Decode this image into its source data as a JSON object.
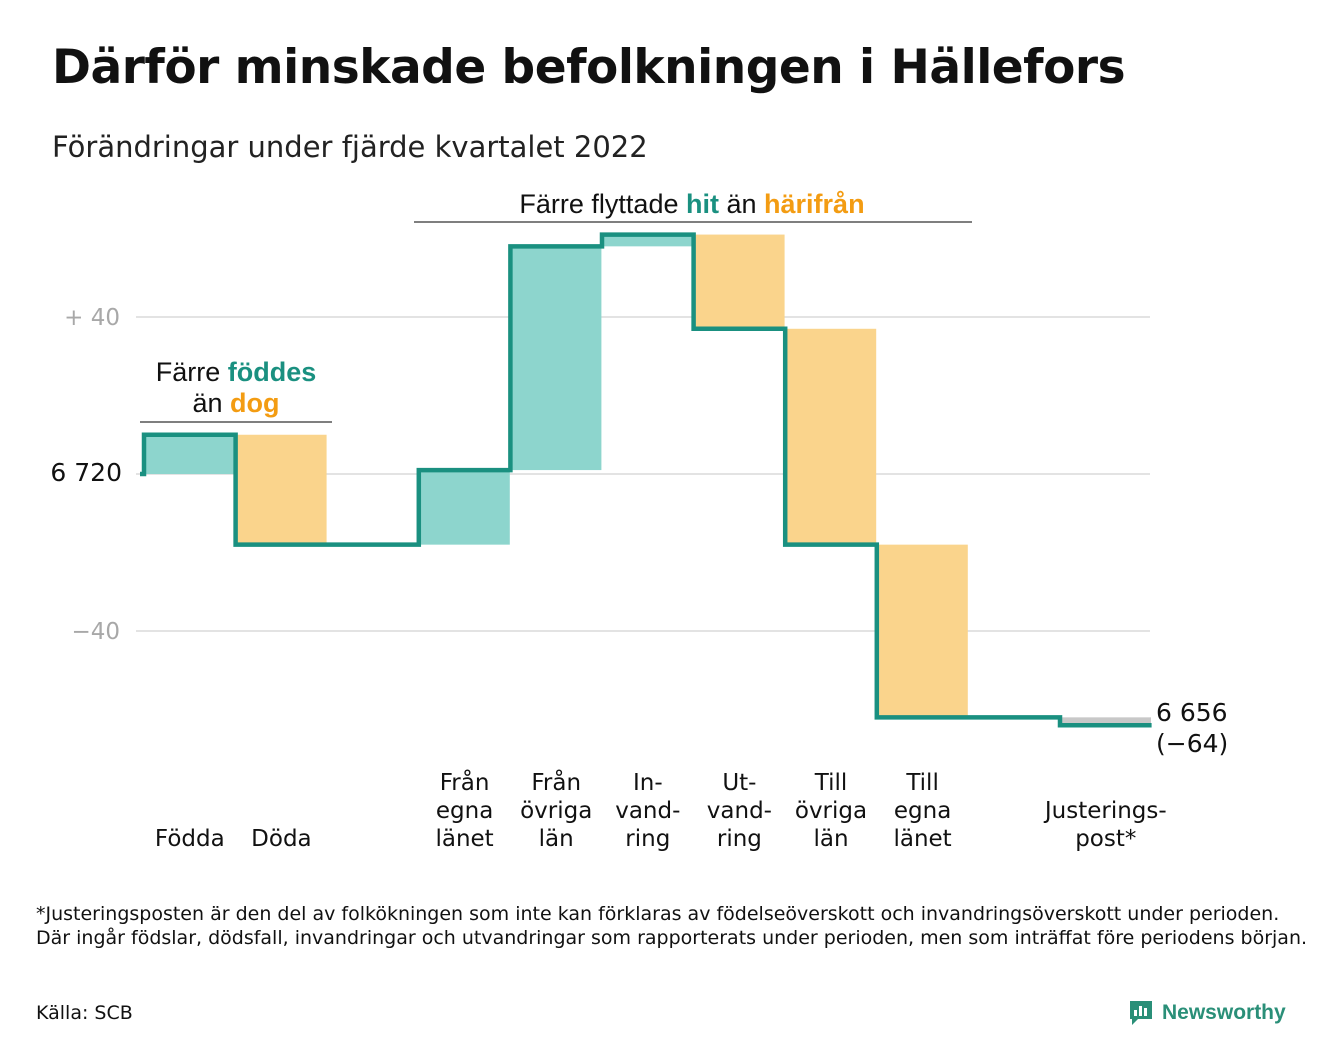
{
  "title": "Därför minskade befolkningen i Hällefors",
  "subtitle": "Förändringar under fjärde kvartalet 2022",
  "footnote": "*Justeringsposten är den del av folkökningen som inte kan förklaras av födelseöverskott och invandringsöverskott under perioden. Där ingår födslar, dödsfall, invandringar och utvandringar som rapporterats under perioden, men som inträffat före periodens början.",
  "source": "Källa: SCB",
  "brand": "Newsworthy",
  "annotations": {
    "births": {
      "line1_pre": "Färre ",
      "line1_hl": "föddes",
      "line2_pre": "än ",
      "line2_hl": "dog"
    },
    "migration": {
      "pre": "Färre flyttade ",
      "hl1": "hit",
      "mid": " än ",
      "hl2": "härifrån"
    }
  },
  "colors": {
    "increase": "#8dd5cd",
    "decrease": "#fad48c",
    "adjustment": "#c8c8c8",
    "step_line": "#1a9080",
    "hl_teal": "#1a9080",
    "hl_orange": "#f39c12",
    "grid": "#e3e3e3",
    "tick": "#a8a8a8"
  },
  "chart_data": {
    "type": "waterfall",
    "start_value": 6720,
    "start_label": "6 720",
    "end_label_value": "6 656",
    "end_label_change": "(−64)",
    "y_ticks": [
      {
        "value": 40,
        "label": "+ 40"
      },
      {
        "value": 0,
        "label": ""
      },
      {
        "value": -40,
        "label": "−40"
      }
    ],
    "ylim": [
      -70,
      65
    ],
    "items": [
      {
        "label": [
          "",
          "",
          "Födda"
        ],
        "change": 10
      },
      {
        "label": [
          "",
          "",
          "Döda"
        ],
        "change": -28
      },
      {
        "label": [
          "",
          "",
          ""
        ],
        "change": 0
      },
      {
        "label": [
          "Från",
          "egna",
          "länet"
        ],
        "change": 19
      },
      {
        "label": [
          "Från",
          "övriga",
          "län"
        ],
        "change": 57
      },
      {
        "label": [
          "In-",
          "vand-",
          "ring"
        ],
        "change": 3
      },
      {
        "label": [
          "Ut-",
          "vand-",
          "ring"
        ],
        "change": -24
      },
      {
        "label": [
          "Till",
          "övriga",
          "län"
        ],
        "change": -55
      },
      {
        "label": [
          "Till",
          "egna",
          "länet"
        ],
        "change": -44
      },
      {
        "label": [
          "",
          "",
          ""
        ],
        "change": 0
      },
      {
        "label": [
          "",
          "Justerings-",
          "post*"
        ],
        "change": -2
      }
    ]
  }
}
